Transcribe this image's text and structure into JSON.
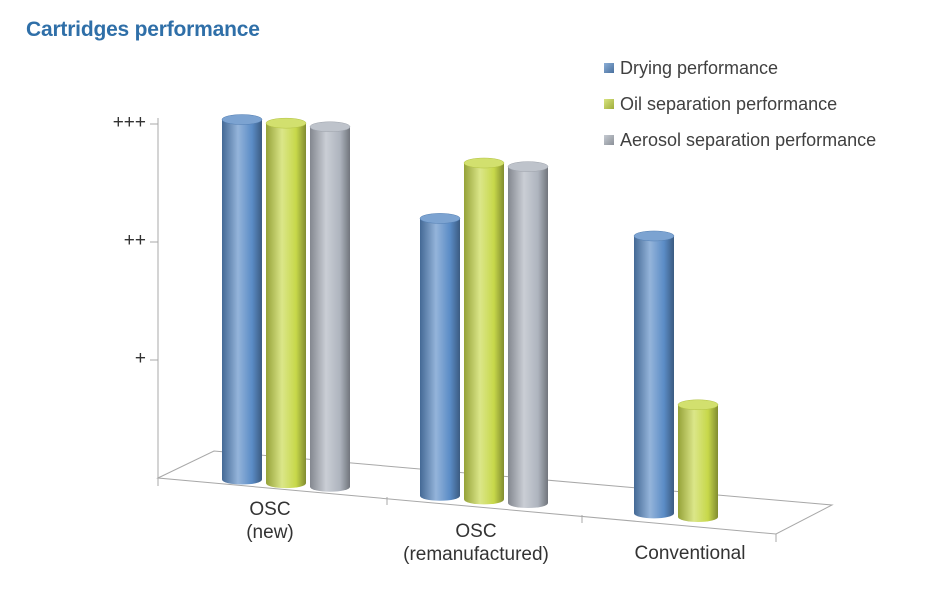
{
  "title": "Cartridges performance",
  "chart_data": {
    "type": "bar",
    "style": "3d-cylinder",
    "categories": [
      {
        "lines": [
          "OSC",
          "(new)"
        ]
      },
      {
        "lines": [
          "OSC",
          "(remanufactured)"
        ]
      },
      {
        "lines": [
          "Conventional"
        ]
      }
    ],
    "yticks": [
      {
        "label": "+",
        "value": 1
      },
      {
        "label": "++",
        "value": 2
      },
      {
        "label": "+++",
        "value": 3
      }
    ],
    "ylim": [
      0,
      3
    ],
    "series": [
      {
        "name": "Drying performance",
        "values": [
          3.0,
          2.3,
          2.3
        ],
        "color": "#5b8cc6"
      },
      {
        "name": "Oil separation performance",
        "values": [
          3.0,
          2.8,
          0.9
        ],
        "color": "#c7d84a"
      },
      {
        "name": "Aerosol separation performance",
        "values": [
          3.0,
          2.8,
          null
        ],
        "color": "#aeb4be"
      }
    ],
    "legend_position": "top-right"
  }
}
